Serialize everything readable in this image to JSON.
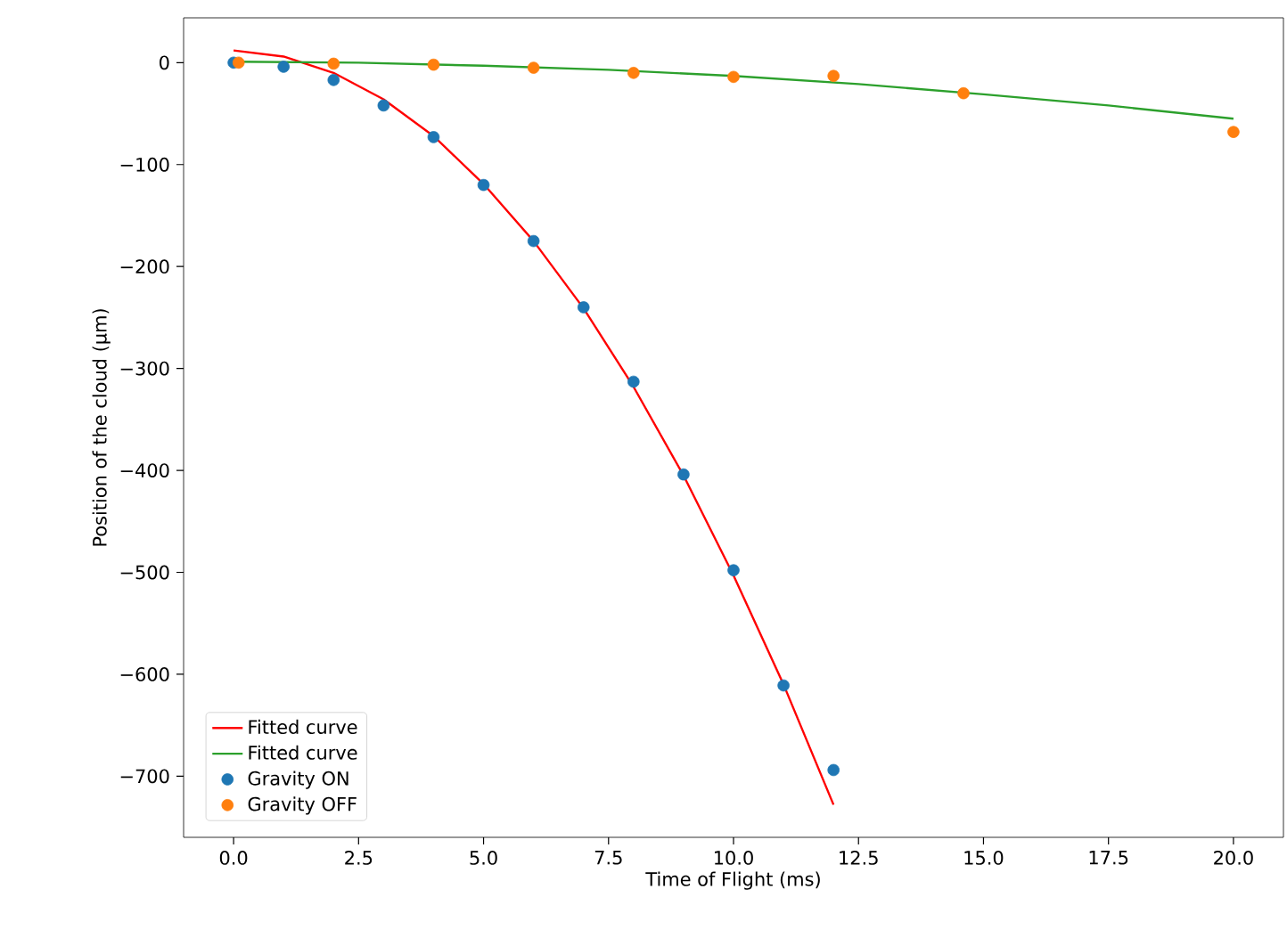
{
  "chart_data": {
    "type": "line",
    "xlabel": "Time of Flight (ms)",
    "ylabel": "Position of the cloud (μm)",
    "xlim": [
      -1,
      21
    ],
    "ylim": [
      -760,
      44
    ],
    "xticks": [
      {
        "value": 0,
        "label": "0.0"
      },
      {
        "value": 2.5,
        "label": "2.5"
      },
      {
        "value": 5,
        "label": "5.0"
      },
      {
        "value": 7.5,
        "label": "7.5"
      },
      {
        "value": 10,
        "label": "10.0"
      },
      {
        "value": 12.5,
        "label": "12.5"
      },
      {
        "value": 15,
        "label": "15.0"
      },
      {
        "value": 17.5,
        "label": "17.5"
      },
      {
        "value": 20,
        "label": "20.0"
      }
    ],
    "yticks": [
      {
        "value": -700,
        "label": "−700"
      },
      {
        "value": -600,
        "label": "−600"
      },
      {
        "value": -500,
        "label": "−500"
      },
      {
        "value": -400,
        "label": "−400"
      },
      {
        "value": -300,
        "label": "−300"
      },
      {
        "value": -200,
        "label": "−200"
      },
      {
        "value": -100,
        "label": "−100"
      },
      {
        "value": 0,
        "label": "0"
      }
    ],
    "legend": "bottom left",
    "series": [
      {
        "name": "Fitted curve",
        "color": "#ff0000",
        "x": [
          0,
          1,
          2,
          3,
          4,
          5,
          6,
          7,
          8,
          9,
          10,
          11,
          12
        ],
        "values": [
          12,
          6,
          -10,
          -36,
          -72,
          -119,
          -175,
          -241,
          -318,
          -405,
          -503,
          -610,
          -728
        ]
      },
      {
        "name": "Fitted curve",
        "color": "#2ca02c",
        "x": [
          0,
          2.5,
          5,
          7.5,
          10,
          12.5,
          15,
          17.5,
          20
        ],
        "values": [
          1,
          0,
          -3,
          -7,
          -13,
          -21,
          -31,
          -42,
          -55
        ]
      },
      {
        "name": "Gravity ON",
        "type": "scatter",
        "marker": "circle",
        "color": "#1f77b4",
        "x": [
          0,
          1,
          2,
          3,
          4,
          5,
          6,
          7,
          8,
          9,
          10,
          11,
          12
        ],
        "values": [
          0,
          -4,
          -17,
          -42,
          -73,
          -120,
          -175,
          -240,
          -313,
          -404,
          -498,
          -611,
          -694
        ]
      },
      {
        "name": "Gravity OFF",
        "type": "scatter",
        "marker": "circle",
        "color": "#ff7f0e",
        "x": [
          0.1,
          2,
          4,
          6,
          8,
          10,
          12,
          14.6,
          20
        ],
        "values": [
          0,
          -1,
          -2,
          -5,
          -10,
          -14,
          -13,
          -30,
          -68
        ]
      }
    ]
  }
}
